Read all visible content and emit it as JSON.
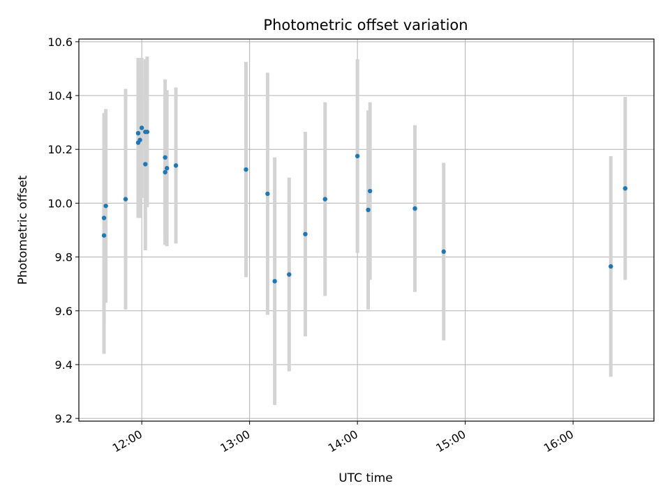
{
  "chart_data": {
    "type": "scatter",
    "title": "Photometric offset variation",
    "xlabel": "UTC time",
    "ylabel": "Photometric offset",
    "xlim": [
      "11:25",
      "16:45"
    ],
    "ylim": [
      9.19,
      10.61
    ],
    "x_ticks": [
      "12:00",
      "13:00",
      "14:00",
      "15:00",
      "16:00"
    ],
    "y_ticks": [
      "9.2",
      "9.4",
      "9.6",
      "9.8",
      "10.0",
      "10.2",
      "10.4",
      "10.6"
    ],
    "grid": true,
    "colors": {
      "point": "#1f77b4",
      "errorbar": "#d3d3d3",
      "grid": "#b0b0b0"
    },
    "points": [
      {
        "x": "11:39",
        "y": 9.88,
        "err": 0.44
      },
      {
        "x": "11:39",
        "y": 9.945,
        "err": 0.39
      },
      {
        "x": "11:40",
        "y": 9.99,
        "err": 0.36
      },
      {
        "x": "11:51",
        "y": 10.015,
        "err": 0.41
      },
      {
        "x": "11:58",
        "y": 10.225,
        "err": 0.28
      },
      {
        "x": "11:58",
        "y": 10.26,
        "err": 0.28
      },
      {
        "x": "11:59",
        "y": 10.235,
        "err": 0.29
      },
      {
        "x": "12:00",
        "y": 10.28,
        "err": 0.26
      },
      {
        "x": "12:02",
        "y": 10.145,
        "err": 0.32
      },
      {
        "x": "12:02",
        "y": 10.265,
        "err": 0.27
      },
      {
        "x": "12:03",
        "y": 10.265,
        "err": 0.28
      },
      {
        "x": "12:13",
        "y": 10.17,
        "err": 0.29
      },
      {
        "x": "12:13",
        "y": 10.115,
        "err": 0.27
      },
      {
        "x": "12:14",
        "y": 10.13,
        "err": 0.29
      },
      {
        "x": "12:19",
        "y": 10.14,
        "err": 0.29
      },
      {
        "x": "12:58",
        "y": 10.125,
        "err": 0.4
      },
      {
        "x": "13:10",
        "y": 10.035,
        "err": 0.45
      },
      {
        "x": "13:14",
        "y": 9.71,
        "err": 0.46
      },
      {
        "x": "13:22",
        "y": 9.735,
        "err": 0.36
      },
      {
        "x": "13:31",
        "y": 9.885,
        "err": 0.38
      },
      {
        "x": "13:42",
        "y": 10.015,
        "err": 0.36
      },
      {
        "x": "14:00",
        "y": 10.175,
        "err": 0.36
      },
      {
        "x": "14:06",
        "y": 9.975,
        "err": 0.37
      },
      {
        "x": "14:07",
        "y": 10.045,
        "err": 0.33
      },
      {
        "x": "14:32",
        "y": 9.98,
        "err": 0.31
      },
      {
        "x": "14:48",
        "y": 9.82,
        "err": 0.33
      },
      {
        "x": "16:21",
        "y": 9.765,
        "err": 0.41
      },
      {
        "x": "16:29",
        "y": 10.055,
        "err": 0.34
      }
    ]
  }
}
